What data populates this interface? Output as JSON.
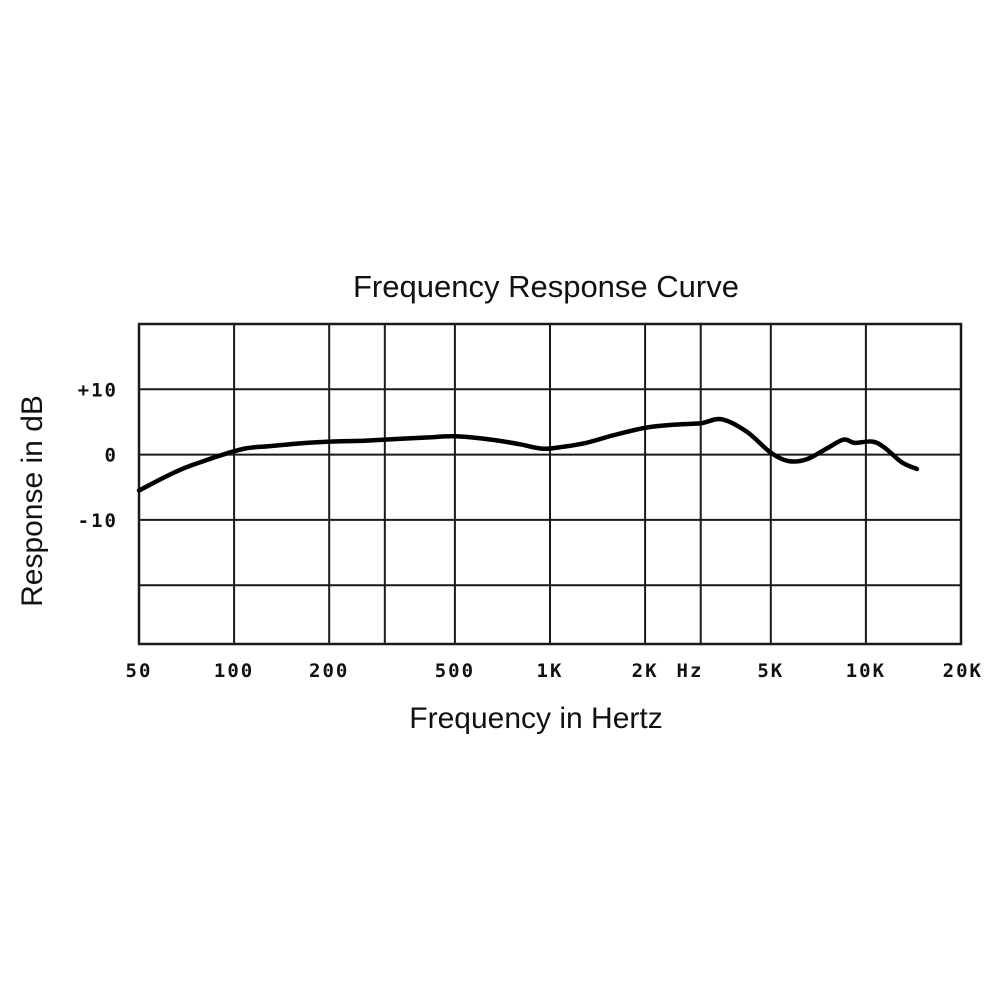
{
  "chart_data": {
    "type": "line",
    "title": "Frequency Response Curve",
    "xlabel": "Frequency in Hertz",
    "ylabel": "Response in dB",
    "x_scale": "log",
    "x_unit_label": "Hz",
    "xlim": [
      50,
      20000
    ],
    "ylim": [
      -29,
      20
    ],
    "x_ticks": [
      {
        "value": 50,
        "label": "50"
      },
      {
        "value": 100,
        "label": "100"
      },
      {
        "value": 200,
        "label": "200"
      },
      {
        "value": 500,
        "label": "500"
      },
      {
        "value": 1000,
        "label": "1K"
      },
      {
        "value": 2000,
        "label": "2K"
      },
      {
        "value": 5000,
        "label": "5K"
      },
      {
        "value": 10000,
        "label": "10K"
      },
      {
        "value": 20000,
        "label": "20K"
      }
    ],
    "x_gridlines": [
      100,
      200,
      300,
      500,
      1000,
      2000,
      3000,
      5000,
      10000,
      20000
    ],
    "y_ticks": [
      {
        "value": 10,
        "label": "+10"
      },
      {
        "value": 0,
        "label": "0"
      },
      {
        "value": -10,
        "label": "-10"
      }
    ],
    "y_gridlines": [
      10,
      0,
      -10,
      -20
    ],
    "grid": true,
    "series": [
      {
        "x": [
          50,
          60,
          70,
          80,
          95,
          110,
          130,
          160,
          200,
          250,
          300,
          400,
          500,
          650,
          800,
          950,
          1100,
          1300,
          1600,
          2000,
          2500,
          3000,
          3500,
          4200,
          5000,
          5700,
          6500,
          7500,
          8500,
          9200,
          10500,
          11500,
          13000,
          14500
        ],
        "y": [
          -5.5,
          -3.5,
          -2.0,
          -1.0,
          0.2,
          1.0,
          1.3,
          1.7,
          2.0,
          2.1,
          2.3,
          2.6,
          2.8,
          2.3,
          1.6,
          0.9,
          1.2,
          1.8,
          3.0,
          4.1,
          4.6,
          4.8,
          5.4,
          3.5,
          0.3,
          -1.0,
          -0.7,
          0.9,
          2.3,
          1.8,
          2.0,
          1.0,
          -1.2,
          -2.2
        ],
        "color": "#000000"
      }
    ]
  }
}
